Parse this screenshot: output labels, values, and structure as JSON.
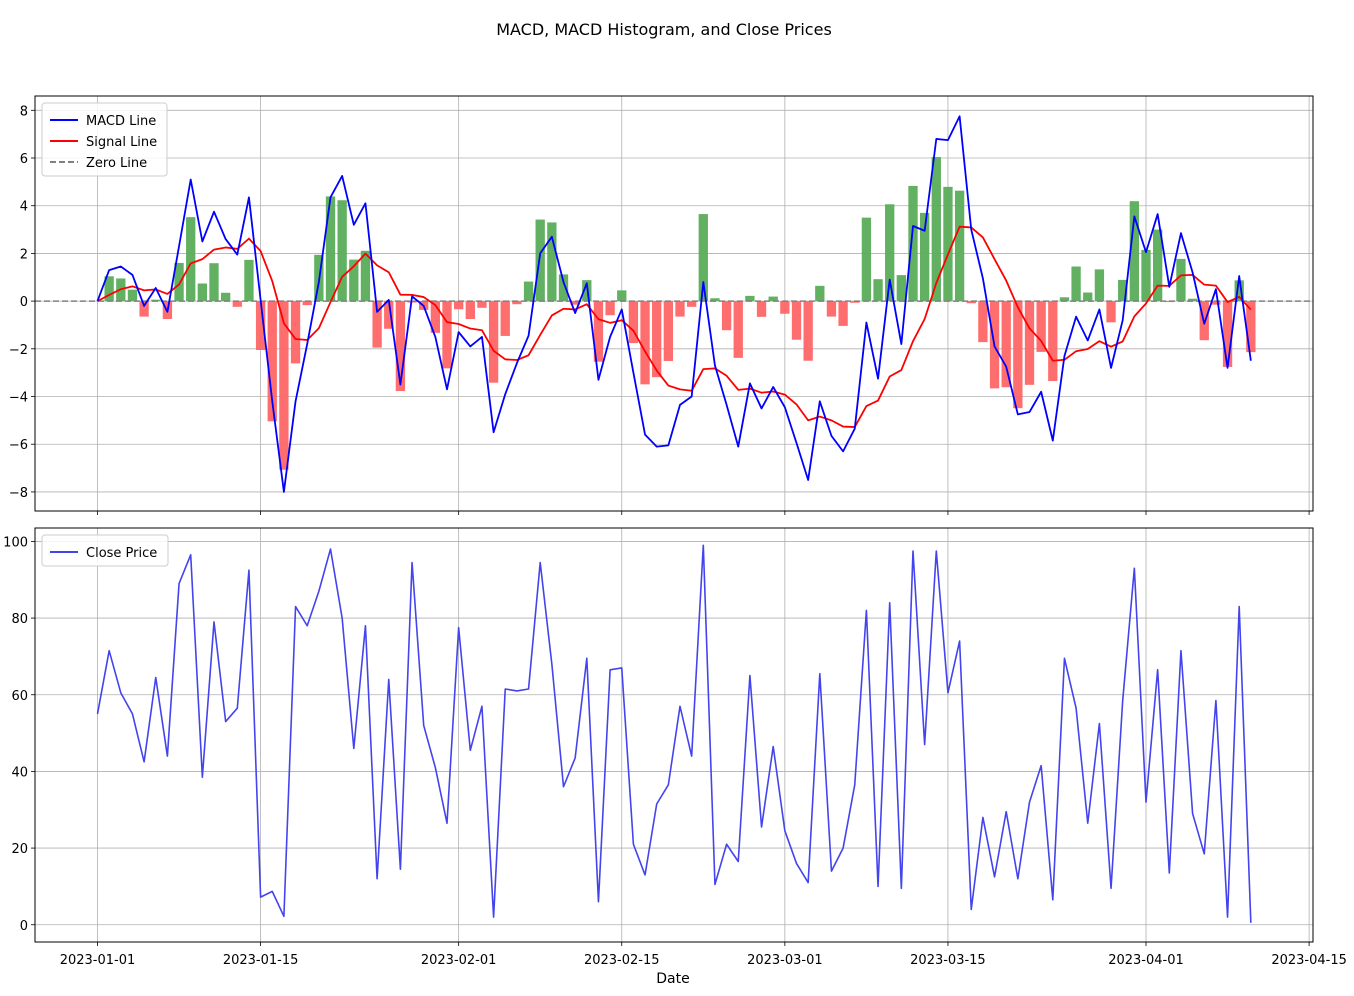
{
  "title": "MACD, MACD Histogram, and Close Prices",
  "xlabel": "Date",
  "x_ticks": [
    "2023-01-01",
    "2023-01-15",
    "2023-02-01",
    "2023-02-15",
    "2023-03-01",
    "2023-03-15",
    "2023-04-01",
    "2023-04-15"
  ],
  "colors": {
    "macd": "#0000ff",
    "signal": "#ff0000",
    "zero": "#808080",
    "hist_pos": "#5aad5a",
    "hist_neg": "#ff6666",
    "close": "#4444ee"
  },
  "chart_data": [
    {
      "type": "line",
      "panel": "top",
      "x_start": "2023-01-01",
      "x_step_days": 1,
      "ylim": [
        -8.8,
        8.6
      ],
      "yticks": [
        -8,
        -6,
        -4,
        -2,
        0,
        2,
        4,
        6,
        8
      ],
      "grid": true,
      "legend_position": "upper-left",
      "series": [
        {
          "name": "MACD Line",
          "values": [
            0.0,
            1.3,
            1.45,
            1.1,
            -0.2,
            0.55,
            -0.45,
            2.3,
            5.1,
            2.5,
            3.75,
            2.6,
            1.95,
            4.35,
            0.05,
            -4.2,
            -8.0,
            -4.2,
            -1.8,
            0.8,
            4.35,
            5.25,
            3.2,
            4.1,
            -0.45,
            0.05,
            -3.5,
            0.2,
            -0.2,
            -1.5,
            -3.7,
            -1.3,
            -1.9,
            -1.5,
            -5.5,
            -3.9,
            -2.6,
            -1.45,
            2.0,
            2.7,
            0.8,
            -0.5,
            0.75,
            -3.3,
            -1.5,
            -0.35,
            -3.0,
            -5.6,
            -6.1,
            -6.05,
            -4.35,
            -4.0,
            0.8,
            -2.7,
            -4.35,
            -6.1,
            -3.45,
            -4.5,
            -3.6,
            -4.45,
            -5.95,
            -7.5,
            -4.2,
            -5.65,
            -6.3,
            -5.35,
            -0.9,
            -3.25,
            0.9,
            -1.8,
            3.15,
            2.95,
            6.8,
            6.75,
            7.75,
            3.0,
            0.95,
            -1.9,
            -2.75,
            -4.75,
            -4.65,
            -3.8,
            -5.85,
            -2.3,
            -0.65,
            -1.65,
            -0.35,
            -2.8,
            -0.8,
            3.55,
            2.05,
            3.65,
            0.6,
            2.85,
            1.2,
            -0.95,
            0.5,
            -2.8,
            1.05,
            -2.5
          ]
        },
        {
          "name": "Signal Line",
          "values": [
            0.0,
            0.26,
            0.5,
            0.62,
            0.45,
            0.49,
            0.3,
            0.7,
            1.58,
            1.76,
            2.16,
            2.25,
            2.19,
            2.62,
            2.1,
            0.84,
            -0.93,
            -1.59,
            -1.63,
            -1.14,
            -0.04,
            1.02,
            1.46,
            1.99,
            1.5,
            1.21,
            0.27,
            0.26,
            0.17,
            -0.17,
            -0.88,
            -0.96,
            -1.15,
            -1.22,
            -2.08,
            -2.44,
            -2.47,
            -2.27,
            -1.42,
            -0.6,
            -0.32,
            -0.35,
            -0.13,
            -0.76,
            -0.91,
            -0.8,
            -1.24,
            -2.11,
            -2.91,
            -3.54,
            -3.7,
            -3.76,
            -2.85,
            -2.82,
            -3.13,
            -3.72,
            -3.67,
            -3.84,
            -3.79,
            -3.92,
            -4.33,
            -5.0,
            -4.84,
            -5.0,
            -5.26,
            -5.28,
            -4.4,
            -4.17,
            -3.16,
            -2.89,
            -1.68,
            -0.75,
            0.76,
            1.96,
            3.12,
            3.09,
            2.67,
            1.76,
            0.86,
            -0.26,
            -1.14,
            -1.67,
            -2.5,
            -2.46,
            -2.1,
            -2.01,
            -1.68,
            -1.91,
            -1.69,
            -0.64,
            -0.1,
            0.65,
            0.64,
            1.08,
            1.1,
            0.69,
            0.65,
            -0.04,
            0.18,
            -0.36
          ]
        },
        {
          "name": "Zero Line",
          "values": [
            0,
            0
          ]
        },
        {
          "name": "MACD Histogram",
          "type": "bar",
          "values": [
            0.0,
            1.04,
            0.95,
            0.48,
            -0.65,
            0.06,
            -0.75,
            1.6,
            3.52,
            0.74,
            1.59,
            0.35,
            -0.24,
            1.73,
            -2.05,
            -5.04,
            -7.07,
            -2.61,
            -0.17,
            1.94,
            4.39,
            4.23,
            1.74,
            2.11,
            -1.95,
            -1.16,
            -3.77,
            -0.06,
            -0.37,
            -1.33,
            -2.82,
            -0.34,
            -0.75,
            -0.28,
            -3.42,
            -1.46,
            -0.13,
            0.82,
            3.42,
            3.3,
            1.12,
            -0.15,
            0.88,
            -2.54,
            -0.59,
            0.45,
            -1.76,
            -3.49,
            -3.19,
            -2.51,
            -0.65,
            -0.24,
            3.65,
            0.12,
            -1.22,
            -2.38,
            0.22,
            -0.66,
            0.19,
            -0.53,
            -1.62,
            -2.5,
            0.64,
            -0.65,
            -1.04,
            -0.07,
            3.5,
            0.92,
            4.06,
            1.09,
            4.83,
            3.7,
            6.04,
            4.79,
            4.63,
            -0.09,
            -1.72,
            -3.66,
            -3.61,
            -4.49,
            -3.51,
            -2.13,
            -3.35,
            0.16,
            1.45,
            0.36,
            1.33,
            -0.89,
            0.89,
            4.19,
            2.15,
            3.0,
            -0.04,
            1.77,
            0.1,
            -1.64,
            -0.15,
            -2.76,
            0.87,
            -2.14
          ]
        }
      ]
    },
    {
      "type": "line",
      "panel": "bottom",
      "x_start": "2023-01-01",
      "x_step_days": 1,
      "ylim": [
        -4.5,
        103.5
      ],
      "yticks": [
        0,
        20,
        40,
        60,
        80,
        100
      ],
      "grid": true,
      "legend_position": "upper-left",
      "series": [
        {
          "name": "Close Price",
          "values": [
            55,
            71.5,
            60.5,
            55,
            42.5,
            64.5,
            44,
            89,
            96.5,
            38.5,
            79,
            53,
            56.5,
            92.5,
            7.2,
            8.7,
            2.2,
            83,
            78,
            87,
            98,
            80,
            46,
            78,
            12,
            64,
            14.5,
            94.5,
            52,
            41,
            26.5,
            77.5,
            45.5,
            57,
            2,
            61.5,
            61,
            61.5,
            94.5,
            68,
            36,
            43.5,
            69.5,
            6,
            66.5,
            67,
            21,
            13,
            31.5,
            36.5,
            57,
            44,
            99,
            10.5,
            21,
            16.5,
            65,
            25.5,
            46.5,
            24.5,
            16,
            11,
            65.5,
            14,
            20,
            36.5,
            82,
            10,
            84,
            9.5,
            97.5,
            47,
            97.5,
            60.5,
            74,
            4,
            28,
            12.5,
            29.5,
            12,
            32,
            41.5,
            6.5,
            69.5,
            56.5,
            26.5,
            52.5,
            9.5,
            58.5,
            93,
            32,
            66.5,
            13.5,
            71.5,
            29,
            18.5,
            58.5,
            2,
            83,
            0.5
          ]
        }
      ]
    }
  ]
}
